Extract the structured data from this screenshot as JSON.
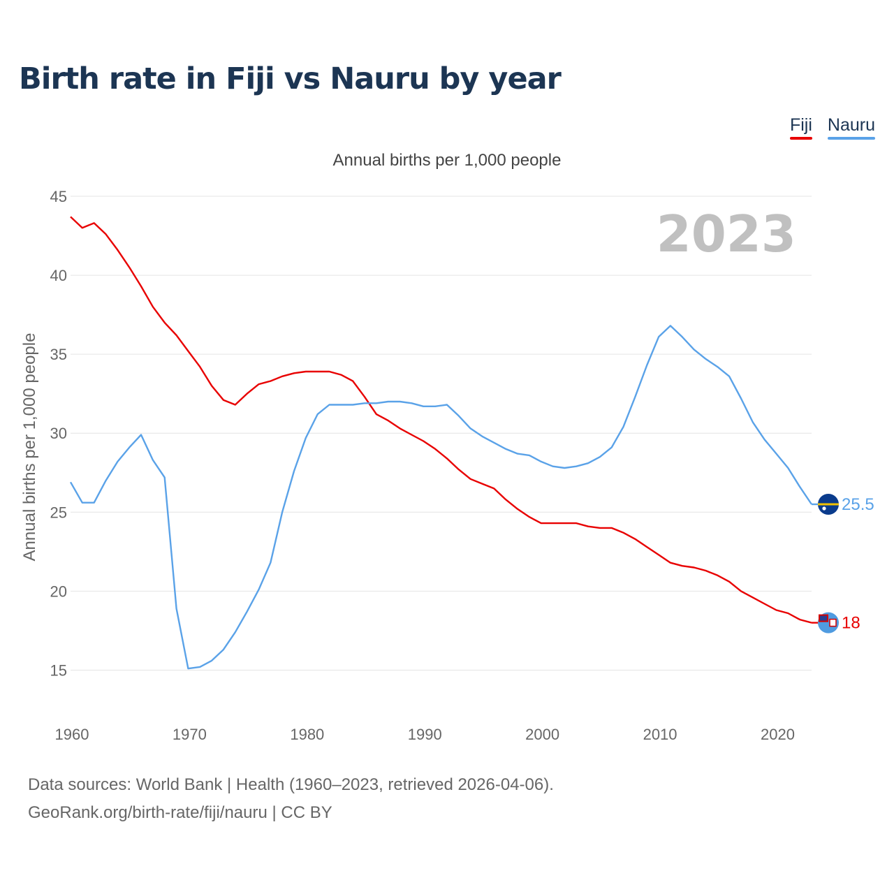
{
  "title": "Birth rate in Fiji vs Nauru by year",
  "legend": [
    {
      "name": "Fiji",
      "color": "#e80000"
    },
    {
      "name": "Nauru",
      "color": "#5aa2e8"
    }
  ],
  "footer": {
    "line1": "Data sources: World Bank | Health (1960–2023, retrieved 2026-04-06).",
    "line2": "GeoRank.org/birth-rate/fiji/nauru | CC BY"
  },
  "chart_data": {
    "type": "line",
    "title": "Birth rate in Fiji vs Nauru by year",
    "subtitle": "Annual births per 1,000 people",
    "ylabel": "Annual births per 1,000 people",
    "xlabel": "",
    "year_watermark": "2023",
    "xlim": [
      1960,
      2023
    ],
    "ylim": [
      12.5,
      45
    ],
    "xticks": [
      1960,
      1970,
      1980,
      1990,
      2000,
      2010,
      2020
    ],
    "yticks": [
      15,
      20,
      25,
      30,
      35,
      40,
      45
    ],
    "grid": true,
    "x": [
      1960,
      1961,
      1962,
      1963,
      1964,
      1965,
      1966,
      1967,
      1968,
      1969,
      1970,
      1971,
      1972,
      1973,
      1974,
      1975,
      1976,
      1977,
      1978,
      1979,
      1980,
      1981,
      1982,
      1983,
      1984,
      1985,
      1986,
      1987,
      1988,
      1989,
      1990,
      1991,
      1992,
      1993,
      1994,
      1995,
      1996,
      1997,
      1998,
      1999,
      2000,
      2001,
      2002,
      2003,
      2004,
      2005,
      2006,
      2007,
      2008,
      2009,
      2010,
      2011,
      2012,
      2013,
      2014,
      2015,
      2016,
      2017,
      2018,
      2019,
      2020,
      2021,
      2022,
      2023
    ],
    "series": [
      {
        "name": "Fiji",
        "color": "#e80000",
        "end_label": "18",
        "values": [
          43.7,
          43.0,
          43.3,
          42.6,
          41.6,
          40.5,
          39.3,
          38.0,
          37.0,
          36.2,
          35.2,
          34.2,
          33.0,
          32.1,
          31.8,
          32.5,
          33.1,
          33.3,
          33.6,
          33.8,
          33.9,
          33.9,
          33.9,
          33.7,
          33.3,
          32.3,
          31.2,
          30.8,
          30.3,
          29.9,
          29.5,
          29.0,
          28.4,
          27.7,
          27.1,
          26.8,
          26.5,
          25.8,
          25.2,
          24.7,
          24.3,
          24.3,
          24.3,
          24.3,
          24.1,
          24.0,
          24.0,
          23.7,
          23.3,
          22.8,
          22.3,
          21.8,
          21.6,
          21.5,
          21.3,
          21.0,
          20.6,
          20.0,
          19.6,
          19.2,
          18.8,
          18.6,
          18.2,
          18.0
        ]
      },
      {
        "name": "Nauru",
        "color": "#5aa2e8",
        "end_label": "25.5",
        "values": [
          26.9,
          25.6,
          25.6,
          27.0,
          28.2,
          29.1,
          29.9,
          28.3,
          27.2,
          18.9,
          15.1,
          15.2,
          15.6,
          16.3,
          17.4,
          18.7,
          20.1,
          21.8,
          25.0,
          27.6,
          29.7,
          31.2,
          31.8,
          31.8,
          31.8,
          31.9,
          31.9,
          32.0,
          32.0,
          31.9,
          31.7,
          31.7,
          31.8,
          31.1,
          30.3,
          29.8,
          29.4,
          29.0,
          28.7,
          28.6,
          28.2,
          27.9,
          27.8,
          27.9,
          28.1,
          28.5,
          29.1,
          30.4,
          32.3,
          34.3,
          36.1,
          36.8,
          36.1,
          35.3,
          34.7,
          34.2,
          33.6,
          32.2,
          30.7,
          29.6,
          28.7,
          27.8,
          26.6,
          25.5
        ]
      }
    ]
  }
}
